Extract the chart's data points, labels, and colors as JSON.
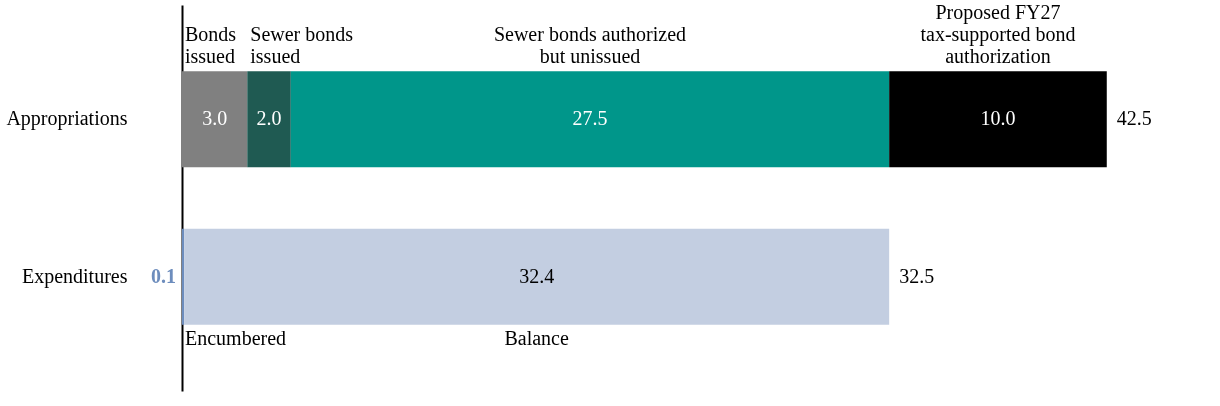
{
  "chart_data": {
    "type": "bar",
    "orientation": "horizontal",
    "stacked": true,
    "legend": false,
    "grid": false,
    "tick_labels": "y",
    "categories": [
      "Appropriations",
      "Expenditures"
    ],
    "series": [
      {
        "name": "Bonds issued",
        "color": "#808080",
        "values": [
          3.0,
          null
        ],
        "value_labels": [
          "3.0",
          null
        ]
      },
      {
        "name": "Sewer bonds issued",
        "color": "#1f5a52",
        "values": [
          2.0,
          null
        ],
        "value_labels": [
          "2.0",
          null
        ]
      },
      {
        "name": "Sewer bonds authorized but unissued",
        "color": "#00968a",
        "values": [
          27.5,
          null
        ],
        "value_labels": [
          "27.5",
          null
        ]
      },
      {
        "name": "Proposed FY27 tax-supported bond authorization",
        "color": "#000000",
        "values": [
          10.0,
          null
        ],
        "value_labels": [
          "10.0",
          null
        ]
      },
      {
        "name": "Encumbered",
        "color": "#6d8dbd",
        "values": [
          null,
          0.1
        ],
        "value_labels": [
          null,
          "0.1"
        ]
      },
      {
        "name": "Balance",
        "color": "#c3cee1",
        "values": [
          null,
          32.4
        ],
        "value_labels": [
          null,
          "32.4"
        ]
      }
    ],
    "totals": [
      "42.5",
      "32.5"
    ]
  }
}
